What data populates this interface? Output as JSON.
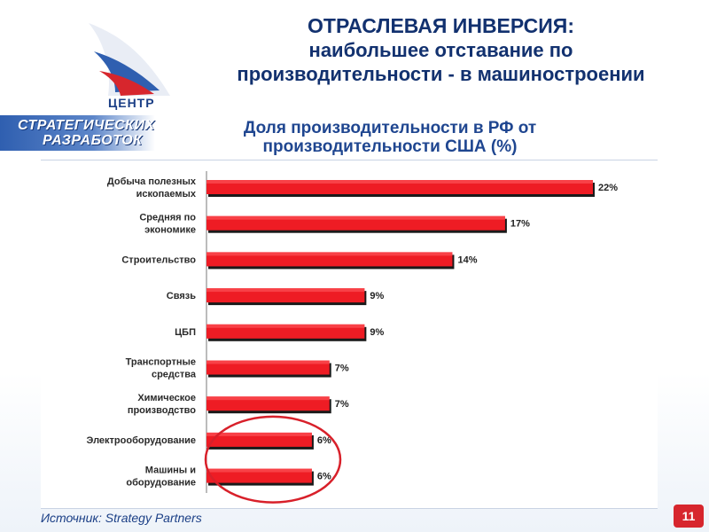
{
  "logo": {
    "center_word": "ЦЕНТР",
    "line1": "СТРАТЕГИЧЕСКИХ",
    "line2": "РАЗРАБОТОК"
  },
  "header": {
    "title_line1": "ОТРАСЛЕВАЯ ИНВЕРСИЯ:",
    "title_line2": "наибольшее отставание по",
    "title_line3": "производительности - в машиностроении"
  },
  "footer": {
    "source": "Источник: Strategy Partners",
    "page_number": "11"
  },
  "chart_data": {
    "type": "bar",
    "orientation": "horizontal",
    "title": "Доля производительности в РФ от производительности США (%)",
    "categories": [
      "Добыча полезных ископаемых",
      "Средняя по экономике",
      "Строительство",
      "Связь",
      "ЦБП",
      "Транспортные средства",
      "Химическое производство",
      "Электрооборудование",
      "Машины и оборудование"
    ],
    "values": [
      22,
      17,
      14,
      9,
      9,
      7,
      7,
      6,
      6
    ],
    "value_labels": [
      "22%",
      "17%",
      "14%",
      "9%",
      "9%",
      "7%",
      "7%",
      "6%",
      "6%"
    ],
    "xlim": [
      0,
      22
    ],
    "grid": false,
    "legend": false,
    "bar_color": "#ee1c24",
    "highlight_color": "#d8202a",
    "highlighted_categories": [
      "Электрооборудование",
      "Машины и оборудование"
    ]
  }
}
